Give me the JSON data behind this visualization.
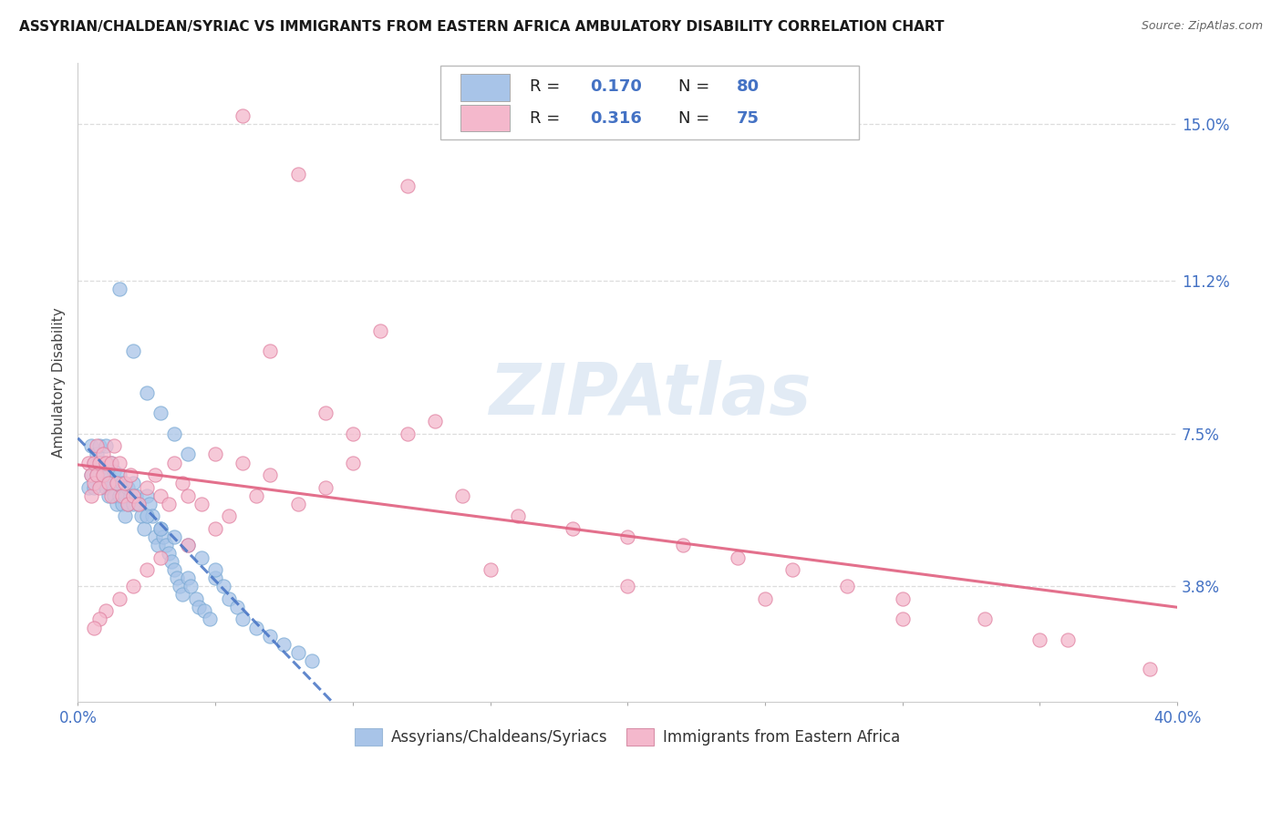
{
  "title": "ASSYRIAN/CHALDEAN/SYRIAC VS IMMIGRANTS FROM EASTERN AFRICA AMBULATORY DISABILITY CORRELATION CHART",
  "source": "Source: ZipAtlas.com",
  "ylabel": "Ambulatory Disability",
  "yticks": [
    "3.8%",
    "7.5%",
    "11.2%",
    "15.0%"
  ],
  "ytick_vals": [
    0.038,
    0.075,
    0.112,
    0.15
  ],
  "xlim": [
    0.0,
    0.4
  ],
  "ylim": [
    0.01,
    0.165
  ],
  "blue_color": "#a8c4e8",
  "blue_edge": "#7aaad4",
  "blue_line_color": "#4472c4",
  "pink_color": "#f4b8cc",
  "pink_edge": "#e080a0",
  "pink_line_color": "#e06080",
  "legend_R1": "R = 0.170",
  "legend_N1": "N = 80",
  "legend_R2": "R = 0.316",
  "legend_N2": "N = 75",
  "text_dark": "#222222",
  "text_blue": "#4472c4",
  "watermark": "ZIPAtlas",
  "grid_color": "#dddddd",
  "background_color": "#ffffff",
  "blue_x": [
    0.004,
    0.005,
    0.005,
    0.006,
    0.006,
    0.007,
    0.007,
    0.008,
    0.008,
    0.008,
    0.009,
    0.009,
    0.01,
    0.01,
    0.01,
    0.011,
    0.011,
    0.012,
    0.012,
    0.013,
    0.013,
    0.014,
    0.014,
    0.015,
    0.015,
    0.016,
    0.016,
    0.017,
    0.017,
    0.018,
    0.018,
    0.019,
    0.02,
    0.02,
    0.021,
    0.022,
    0.023,
    0.024,
    0.025,
    0.026,
    0.027,
    0.028,
    0.029,
    0.03,
    0.031,
    0.032,
    0.033,
    0.034,
    0.035,
    0.036,
    0.037,
    0.038,
    0.04,
    0.041,
    0.043,
    0.044,
    0.046,
    0.048,
    0.05,
    0.053,
    0.055,
    0.058,
    0.06,
    0.065,
    0.07,
    0.075,
    0.08,
    0.085,
    0.015,
    0.02,
    0.025,
    0.03,
    0.035,
    0.04,
    0.025,
    0.03,
    0.035,
    0.04,
    0.045,
    0.05
  ],
  "blue_y": [
    0.062,
    0.072,
    0.065,
    0.068,
    0.062,
    0.07,
    0.065,
    0.068,
    0.072,
    0.065,
    0.063,
    0.068,
    0.062,
    0.067,
    0.072,
    0.065,
    0.06,
    0.068,
    0.063,
    0.066,
    0.06,
    0.063,
    0.058,
    0.065,
    0.06,
    0.063,
    0.058,
    0.06,
    0.055,
    0.062,
    0.058,
    0.06,
    0.058,
    0.063,
    0.06,
    0.058,
    0.055,
    0.052,
    0.06,
    0.058,
    0.055,
    0.05,
    0.048,
    0.052,
    0.05,
    0.048,
    0.046,
    0.044,
    0.042,
    0.04,
    0.038,
    0.036,
    0.04,
    0.038,
    0.035,
    0.033,
    0.032,
    0.03,
    0.04,
    0.038,
    0.035,
    0.033,
    0.03,
    0.028,
    0.026,
    0.024,
    0.022,
    0.02,
    0.11,
    0.095,
    0.085,
    0.08,
    0.075,
    0.07,
    0.055,
    0.052,
    0.05,
    0.048,
    0.045,
    0.042
  ],
  "pink_x": [
    0.004,
    0.005,
    0.005,
    0.006,
    0.006,
    0.007,
    0.007,
    0.008,
    0.008,
    0.009,
    0.009,
    0.01,
    0.011,
    0.012,
    0.012,
    0.013,
    0.014,
    0.015,
    0.016,
    0.017,
    0.018,
    0.019,
    0.02,
    0.022,
    0.025,
    0.028,
    0.03,
    0.033,
    0.035,
    0.038,
    0.04,
    0.045,
    0.05,
    0.055,
    0.06,
    0.065,
    0.07,
    0.08,
    0.09,
    0.1,
    0.12,
    0.14,
    0.16,
    0.18,
    0.2,
    0.22,
    0.24,
    0.26,
    0.28,
    0.3,
    0.33,
    0.36,
    0.39,
    0.15,
    0.2,
    0.25,
    0.3,
    0.35,
    0.1,
    0.12,
    0.08,
    0.06,
    0.07,
    0.09,
    0.11,
    0.13,
    0.05,
    0.04,
    0.03,
    0.025,
    0.02,
    0.015,
    0.01,
    0.008,
    0.006
  ],
  "pink_y": [
    0.068,
    0.065,
    0.06,
    0.068,
    0.063,
    0.072,
    0.065,
    0.068,
    0.062,
    0.07,
    0.065,
    0.068,
    0.063,
    0.068,
    0.06,
    0.072,
    0.063,
    0.068,
    0.06,
    0.063,
    0.058,
    0.065,
    0.06,
    0.058,
    0.062,
    0.065,
    0.06,
    0.058,
    0.068,
    0.063,
    0.06,
    0.058,
    0.07,
    0.055,
    0.068,
    0.06,
    0.065,
    0.058,
    0.062,
    0.068,
    0.075,
    0.06,
    0.055,
    0.052,
    0.05,
    0.048,
    0.045,
    0.042,
    0.038,
    0.035,
    0.03,
    0.025,
    0.018,
    0.042,
    0.038,
    0.035,
    0.03,
    0.025,
    0.075,
    0.135,
    0.138,
    0.152,
    0.095,
    0.08,
    0.1,
    0.078,
    0.052,
    0.048,
    0.045,
    0.042,
    0.038,
    0.035,
    0.032,
    0.03,
    0.028
  ]
}
